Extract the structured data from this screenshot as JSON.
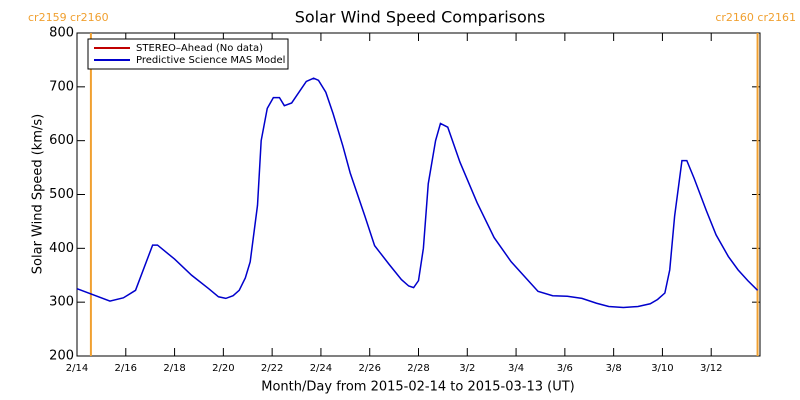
{
  "chart_data": {
    "type": "line",
    "title": "Solar Wind Speed Comparisons",
    "x_label": "Month/Day from 2015-02-14 to 2015-03-13 (UT)",
    "y_label": "Solar Wind Speed (km/s)",
    "xlim": [
      0,
      28
    ],
    "ylim": [
      200,
      800
    ],
    "xticks": [
      {
        "value": 0,
        "label": "2/14"
      },
      {
        "value": 2,
        "label": "2/16"
      },
      {
        "value": 4,
        "label": "2/18"
      },
      {
        "value": 6,
        "label": "2/20"
      },
      {
        "value": 8,
        "label": "2/22"
      },
      {
        "value": 10,
        "label": "2/24"
      },
      {
        "value": 12,
        "label": "2/26"
      },
      {
        "value": 14,
        "label": "2/28"
      },
      {
        "value": 16,
        "label": "3/2"
      },
      {
        "value": 18,
        "label": "3/4"
      },
      {
        "value": 20,
        "label": "3/6"
      },
      {
        "value": 22,
        "label": "3/8"
      },
      {
        "value": 24,
        "label": "3/10"
      },
      {
        "value": 26,
        "label": "3/12"
      }
    ],
    "yticks": [
      200,
      300,
      400,
      500,
      600,
      700,
      800
    ],
    "markers": [
      {
        "x": 0.57,
        "label": "cr2159 cr2160",
        "color": "#f0a030"
      },
      {
        "x": 27.9,
        "label": "cr2160 cr2161",
        "color": "#f0a030"
      }
    ],
    "x": [
      0,
      1.35,
      1.9,
      2.4,
      3.1,
      3.3,
      4.0,
      4.7,
      5.4,
      5.8,
      6.1,
      6.4,
      6.65,
      6.9,
      7.1,
      7.4,
      7.55,
      7.8,
      8.05,
      8.3,
      8.5,
      8.8,
      9.1,
      9.4,
      9.7,
      9.9,
      10.2,
      10.5,
      10.9,
      11.2,
      11.8,
      12.2,
      12.8,
      13.3,
      13.6,
      13.8,
      14.0,
      14.2,
      14.4,
      14.7,
      14.9,
      15.2,
      15.7,
      16.4,
      17.1,
      17.8,
      18.5,
      18.9,
      19.5,
      20.1,
      20.7,
      21.3,
      21.8,
      22.4,
      23.0,
      23.5,
      23.8,
      24.1,
      24.3,
      24.5,
      24.8,
      25.0,
      25.3,
      25.8,
      26.2,
      26.7,
      27.1,
      27.5,
      27.9
    ],
    "series": [
      {
        "name": "STEREO–Ahead (No data)",
        "color": "#c00000",
        "values": [
          null,
          null,
          null,
          null,
          null,
          null,
          null,
          null,
          null,
          null,
          null,
          null,
          null,
          null,
          null,
          null,
          null,
          null,
          null,
          null,
          null,
          null,
          null,
          null,
          null,
          null,
          null,
          null,
          null,
          null,
          null,
          null,
          null,
          null,
          null,
          null,
          null,
          null,
          null,
          null,
          null,
          null,
          null,
          null,
          null,
          null,
          null,
          null,
          null,
          null,
          null,
          null,
          null,
          null,
          null,
          null,
          null,
          null,
          null,
          null,
          null,
          null,
          null,
          null,
          null,
          null,
          null,
          null,
          null
        ]
      },
      {
        "name": "Predictive Science MAS Model",
        "color": "#0000cc",
        "values": [
          325,
          302,
          308,
          322,
          406,
          406,
          380,
          350,
          325,
          310,
          307,
          312,
          322,
          345,
          375,
          480,
          600,
          660,
          680,
          680,
          665,
          670,
          690,
          710,
          716,
          712,
          690,
          650,
          590,
          540,
          460,
          405,
          370,
          342,
          330,
          327,
          340,
          400,
          520,
          600,
          632,
          625,
          560,
          485,
          420,
          375,
          340,
          320,
          312,
          311,
          307,
          298,
          292,
          290,
          292,
          297,
          305,
          317,
          360,
          460,
          563,
          563,
          530,
          470,
          425,
          385,
          360,
          340,
          322
        ]
      }
    ]
  }
}
